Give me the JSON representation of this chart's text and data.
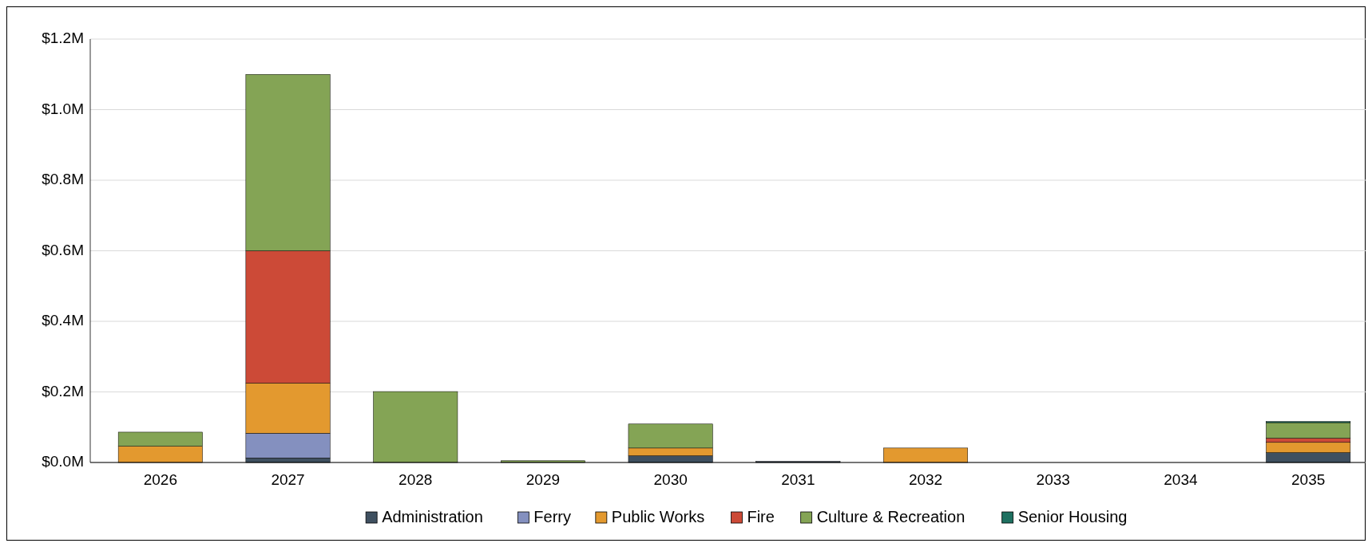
{
  "chart_data": {
    "type": "bar",
    "stacked": true,
    "categories": [
      "2026",
      "2027",
      "2028",
      "2029",
      "2030",
      "2031",
      "2032",
      "2033",
      "2034",
      "2035"
    ],
    "series": [
      {
        "name": "Administration",
        "color": "#3f5060",
        "values": [
          0,
          0.013,
          null,
          0,
          0.019,
          0.003,
          0,
          0,
          0,
          0.028
        ]
      },
      {
        "name": "Ferry",
        "color": "#8490bf",
        "values": [
          0,
          0.07,
          0,
          0,
          0,
          0,
          0,
          0,
          0,
          null
        ]
      },
      {
        "name": "Public Works",
        "color": "#e3992f",
        "values": [
          0.046,
          0.142,
          0,
          0,
          0.022,
          0,
          0.041,
          0,
          0,
          0.029
        ]
      },
      {
        "name": "Fire",
        "color": "#cc4a37",
        "values": [
          0,
          0.375,
          0,
          0,
          null,
          0,
          0,
          0,
          0,
          0.012
        ]
      },
      {
        "name": "Culture & Recreation",
        "color": "#84a455",
        "values": [
          0.04,
          0.5,
          0.201,
          0.005,
          0.068,
          0,
          0,
          0,
          0,
          0.044
        ]
      },
      {
        "name": "Senior Housing",
        "color": "#1e7060",
        "values": [
          0,
          0,
          0,
          0,
          0,
          0,
          0,
          0,
          0,
          0.003
        ]
      }
    ],
    "ylim": [
      0,
      1.2
    ],
    "yticks": [
      {
        "value": 0,
        "label": "$0.0M"
      },
      {
        "value": 0.2,
        "label": "$0.2M"
      },
      {
        "value": 0.4,
        "label": "$0.4M"
      },
      {
        "value": 0.6,
        "label": "$0.6M"
      },
      {
        "value": 0.8,
        "label": "$0.8M"
      },
      {
        "value": 1,
        "label": "$1.0M"
      },
      {
        "value": 1.2,
        "label": "$1.2M"
      }
    ],
    "grid": "y",
    "legend": "bottom"
  }
}
